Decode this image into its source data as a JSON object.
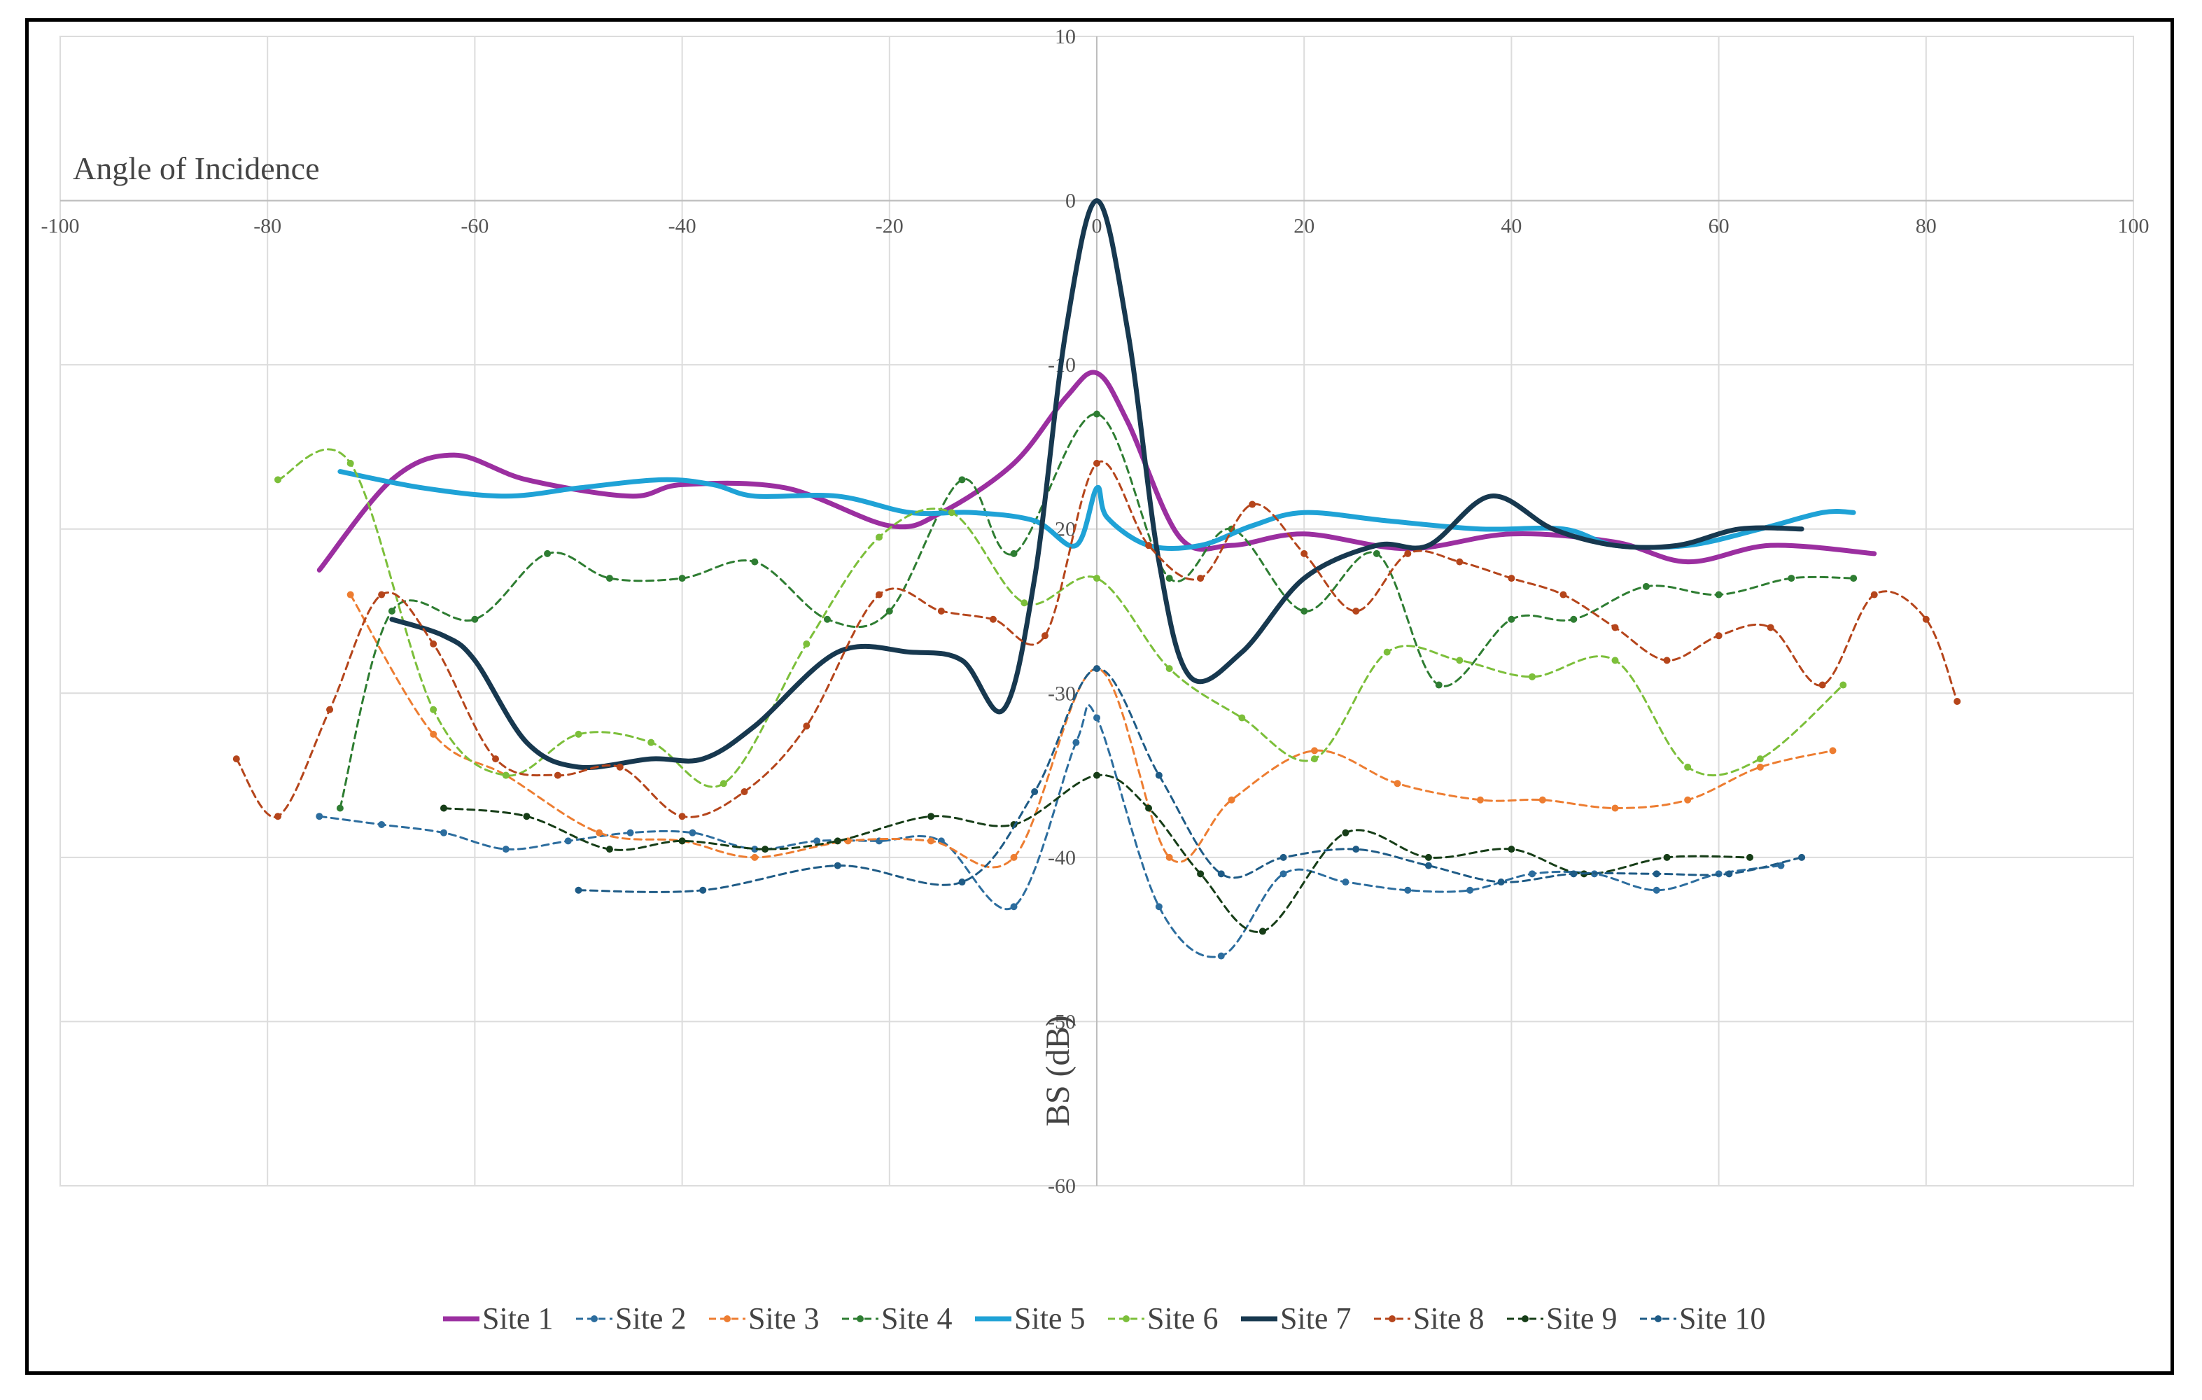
{
  "chart_data": {
    "type": "line",
    "title": "Angle of Incidence",
    "xlabel": "",
    "ylabel": "BS (dB)",
    "xlim": [
      -100,
      100
    ],
    "ylim": [
      -60,
      10
    ],
    "x_ticks": [
      -100,
      -80,
      -60,
      -40,
      -20,
      0,
      20,
      40,
      60,
      80,
      100
    ],
    "y_ticks": [
      10,
      0,
      -10,
      -20,
      -30,
      -40,
      -50,
      -60
    ],
    "grid": true,
    "legend_position": "bottom",
    "series": [
      {
        "name": "Site 1",
        "color": "#9b2fa0",
        "style": "solid",
        "markers": false,
        "x": [
          -75,
          -68,
          -62,
          -55,
          -45,
          -40,
          -30,
          -20,
          -15,
          -8,
          -3,
          0,
          3,
          8,
          13,
          20,
          30,
          40,
          50,
          57,
          65,
          75
        ],
        "y": [
          -22.5,
          -17,
          -15.5,
          -17,
          -18,
          -17.3,
          -17.5,
          -19.8,
          -19,
          -16,
          -12,
          -10.5,
          -13.5,
          -20.5,
          -21,
          -20.3,
          -21.2,
          -20.3,
          -20.8,
          -22,
          -21,
          -21.5
        ]
      },
      {
        "name": "Site 2",
        "color": "#2c6d9e",
        "style": "dashed",
        "markers": true,
        "x": [
          -75,
          -69,
          -63,
          -57,
          -51,
          -45,
          -39,
          -33,
          -27,
          -21,
          -15,
          -8,
          -2,
          0,
          6,
          12,
          18,
          24,
          30,
          36,
          42,
          48,
          54,
          60,
          66
        ],
        "y": [
          -37.5,
          -38,
          -38.5,
          -39.5,
          -39,
          -38.5,
          -38.5,
          -39.5,
          -39,
          -39,
          -39,
          -43,
          -33,
          -31.5,
          -43,
          -46,
          -41,
          -41.5,
          -42,
          -42,
          -41,
          -41,
          -42,
          -41,
          -40.5
        ]
      },
      {
        "name": "Site 3",
        "color": "#ed7d31",
        "style": "dashed",
        "markers": true,
        "x": [
          -72,
          -64,
          -57,
          -48,
          -40,
          -33,
          -24,
          -16,
          -8,
          0,
          7,
          13,
          21,
          29,
          37,
          43,
          50,
          57,
          64,
          71
        ],
        "y": [
          -24,
          -32.5,
          -35,
          -38.5,
          -39,
          -40,
          -39,
          -39,
          -40,
          -28.5,
          -40,
          -36.5,
          -33.5,
          -35.5,
          -36.5,
          -36.5,
          -37,
          -36.5,
          -34.5,
          -33.5
        ]
      },
      {
        "name": "Site 4",
        "color": "#2e7d32",
        "style": "dashed",
        "markers": true,
        "x": [
          -73,
          -68,
          -60,
          -53,
          -47,
          -40,
          -33,
          -26,
          -20,
          -13,
          -8,
          0,
          7,
          13,
          20,
          27,
          33,
          40,
          46,
          53,
          60,
          67,
          73
        ],
        "y": [
          -37,
          -25,
          -25.5,
          -21.5,
          -23,
          -23,
          -22,
          -25.5,
          -25,
          -17,
          -21.5,
          -13,
          -23,
          -20,
          -25,
          -21.5,
          -29.5,
          -25.5,
          -25.5,
          -23.5,
          -24,
          -23,
          -23
        ]
      },
      {
        "name": "Site 5",
        "color": "#1fa2d6",
        "style": "solid",
        "markers": false,
        "x": [
          -73,
          -65,
          -57,
          -50,
          -42,
          -37,
          -33,
          -25,
          -18,
          -12,
          -6,
          -2,
          0,
          1,
          5,
          10,
          15,
          20,
          28,
          37,
          45,
          50,
          57,
          64,
          70,
          73
        ],
        "y": [
          -16.5,
          -17.5,
          -18,
          -17.5,
          -17,
          -17.3,
          -18,
          -18,
          -19,
          -19,
          -19.5,
          -21,
          -17.5,
          -19.3,
          -21,
          -21,
          -19.8,
          -19,
          -19.5,
          -20,
          -20,
          -21,
          -21,
          -20,
          -19,
          -19
        ]
      },
      {
        "name": "Site 6",
        "color": "#7cbf3a",
        "style": "dashed",
        "markers": true,
        "x": [
          -79,
          -72,
          -64,
          -57,
          -50,
          -43,
          -36,
          -28,
          -21,
          -14,
          -7,
          0,
          7,
          14,
          21,
          28,
          35,
          42,
          50,
          57,
          64,
          72
        ],
        "y": [
          -17,
          -16,
          -31,
          -35,
          -32.5,
          -33,
          -35.5,
          -27,
          -20.5,
          -19,
          -24.5,
          -23,
          -28.5,
          -31.5,
          -34,
          -27.5,
          -28,
          -29,
          -28,
          -34.5,
          -34,
          -29.5
        ]
      },
      {
        "name": "Site 7",
        "color": "#17384f",
        "style": "solid",
        "markers": false,
        "x": [
          -68,
          -63,
          -60,
          -55,
          -50,
          -43,
          -38,
          -33,
          -25,
          -18,
          -13,
          -9,
          -6,
          -3,
          0,
          3,
          6,
          9,
          14,
          20,
          27,
          32,
          38,
          44,
          50,
          56,
          62,
          68
        ],
        "y": [
          -25.5,
          -26.5,
          -28,
          -33,
          -34.5,
          -34,
          -34,
          -32,
          -27.5,
          -27.5,
          -28,
          -31,
          -23,
          -8,
          0,
          -8,
          -22,
          -29,
          -27.5,
          -23,
          -21,
          -21,
          -18,
          -20,
          -21,
          -21,
          -20,
          -20
        ]
      },
      {
        "name": "Site 8",
        "color": "#b5451b",
        "style": "dashed",
        "markers": true,
        "x": [
          -83,
          -79,
          -74,
          -69,
          -64,
          -58,
          -52,
          -46,
          -40,
          -34,
          -28,
          -21,
          -15,
          -10,
          -5,
          0,
          5,
          10,
          15,
          20,
          25,
          30,
          35,
          40,
          45,
          50,
          55,
          60,
          65,
          70,
          75,
          80,
          83
        ],
        "y": [
          -34,
          -37.5,
          -31,
          -24,
          -27,
          -34,
          -35,
          -34.5,
          -37.5,
          -36,
          -32,
          -24,
          -25,
          -25.5,
          -26.5,
          -16,
          -21,
          -23,
          -18.5,
          -21.5,
          -25,
          -21.5,
          -22,
          -23,
          -24,
          -26,
          -28,
          -26.5,
          -26,
          -29.5,
          -24,
          -25.5,
          -30.5
        ]
      },
      {
        "name": "Site 9",
        "color": "#163d17",
        "style": "dashed",
        "markers": true,
        "x": [
          -63,
          -55,
          -47,
          -40,
          -32,
          -25,
          -16,
          -8,
          0,
          5,
          10,
          16,
          24,
          32,
          40,
          47,
          55,
          63
        ],
        "y": [
          -37,
          -37.5,
          -39.5,
          -39,
          -39.5,
          -39,
          -37.5,
          -38,
          -35,
          -37,
          -41,
          -44.5,
          -38.5,
          -40,
          -39.5,
          -41,
          -40,
          -40
        ]
      },
      {
        "name": "Site 10",
        "color": "#1e5b86",
        "style": "dashed",
        "markers": true,
        "x": [
          -50,
          -38,
          -25,
          -13,
          -6,
          0,
          6,
          12,
          18,
          25,
          32,
          39,
          46,
          54,
          61,
          68
        ],
        "y": [
          -42,
          -42,
          -40.5,
          -41.5,
          -36,
          -28.5,
          -35,
          -41,
          -40,
          -39.5,
          -40.5,
          -41.5,
          -41,
          -41,
          -41,
          -40
        ]
      }
    ]
  }
}
